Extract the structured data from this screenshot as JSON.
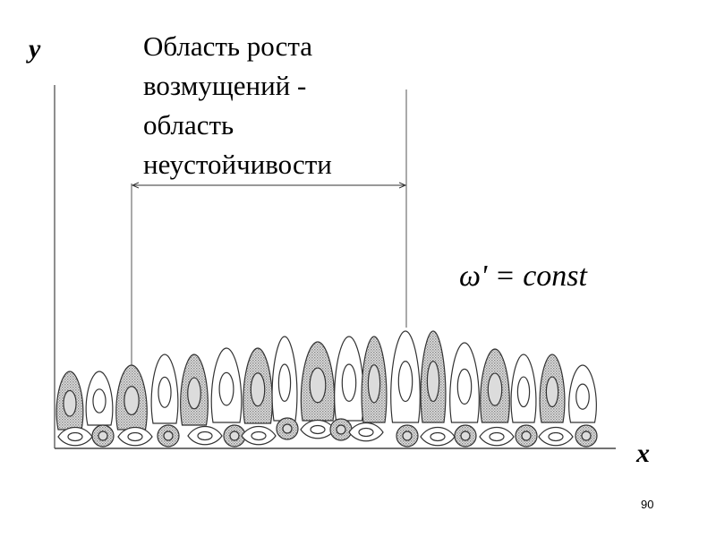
{
  "title_lines": [
    "Область роста",
    "возмущений -",
    "область",
    "неустойчивости"
  ],
  "y_axis_label": "y",
  "x_axis_label": "x",
  "formula": "ω' = const",
  "page_number": "90",
  "cells_upper": [
    "shaded",
    "clear",
    "shaded",
    "clear",
    "shaded",
    "clear",
    "shaded",
    "clear",
    "shaded",
    "clear",
    "shaded",
    "clear",
    "shaded",
    "clear",
    "shaded",
    "clear",
    "shaded",
    "clear"
  ],
  "cells_lower": [
    "clear",
    "shaded",
    "clear",
    "shaded",
    "clear",
    "shaded",
    "clear",
    "shaded",
    "clear",
    "shaded",
    "clear",
    "shaded",
    "clear",
    "shaded",
    "clear",
    "shaded",
    "clear",
    "shaded"
  ],
  "colors": {
    "line": "#333333",
    "shade": "#9a9a9a",
    "nucleus_shaded": "#dcdcdc"
  }
}
